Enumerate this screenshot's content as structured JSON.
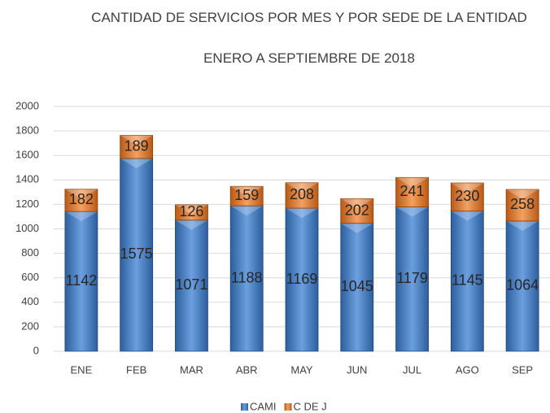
{
  "chart_data": {
    "type": "bar",
    "stacked": true,
    "title": "CANTIDAD DE SERVICIOS POR MES Y POR SEDE DE LA ENTIDAD",
    "subtitle": "ENERO A SEPTIEMBRE DE 2018",
    "categories": [
      "ENE",
      "FEB",
      "MAR",
      "ABR",
      "MAY",
      "JUN",
      "JUL",
      "AGO",
      "SEP"
    ],
    "series": [
      {
        "name": "CAMI",
        "color": "#3f78c0",
        "values": [
          1142,
          1575,
          1071,
          1188,
          1169,
          1045,
          1179,
          1145,
          1064
        ]
      },
      {
        "name": "C DE J",
        "color": "#e0762a",
        "values": [
          182,
          189,
          126,
          159,
          208,
          202,
          241,
          230,
          258
        ]
      }
    ],
    "ylim": [
      0,
      2000
    ],
    "yticks": [
      0,
      200,
      400,
      600,
      800,
      1000,
      1200,
      1400,
      1600,
      1800,
      2000
    ],
    "grid": true,
    "legend": "bottom"
  }
}
